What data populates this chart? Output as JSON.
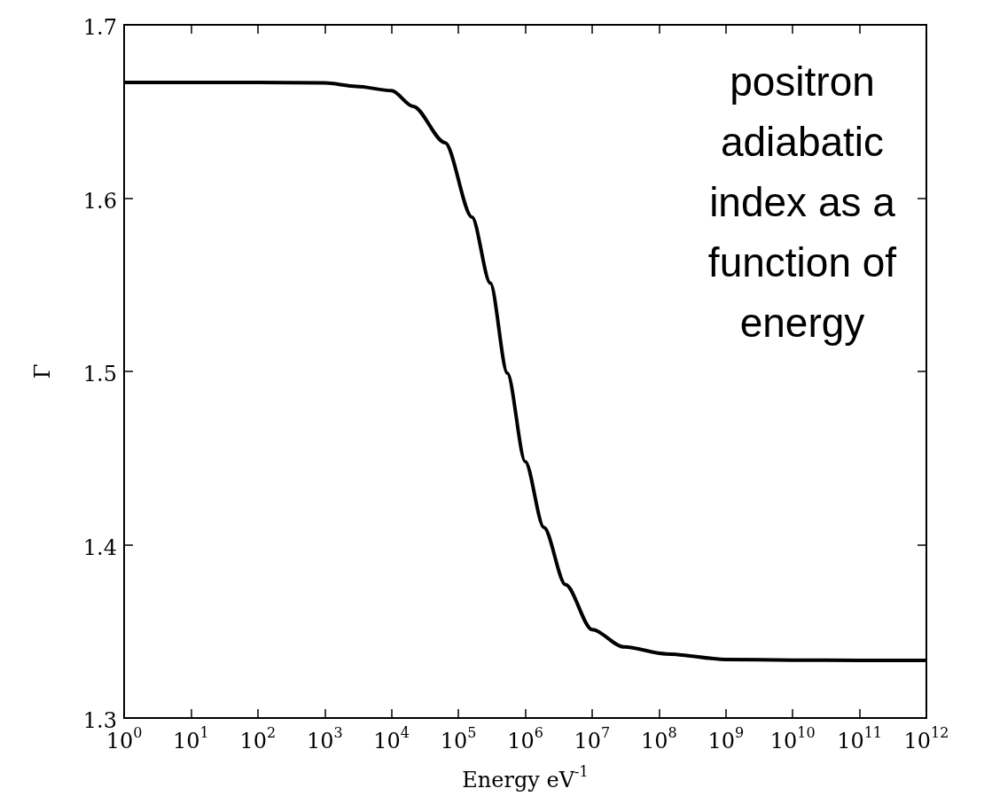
{
  "chart_data": {
    "type": "line",
    "xlabel": "Energy eV$^{-1}$",
    "ylabel": "Γ",
    "log": "x",
    "xlim": [
      1,
      1000000000000
    ],
    "xticks": [
      {
        "value": 1,
        "label": "10$^{0}$"
      },
      {
        "value": 10,
        "label": "10$^{1}$"
      },
      {
        "value": 100,
        "label": "10$^{2}$"
      },
      {
        "value": 1000,
        "label": "10$^{3}$"
      },
      {
        "value": 10000,
        "label": "10$^{4}$"
      },
      {
        "value": 100000,
        "label": "10$^{5}$"
      },
      {
        "value": 1000000,
        "label": "10$^{6}$"
      },
      {
        "value": 10000000,
        "label": "10$^{7}$"
      },
      {
        "value": 100000000,
        "label": "10$^{8}$"
      },
      {
        "value": 1000000000,
        "label": "10$^{9}$"
      },
      {
        "value": 10000000000,
        "label": "10$^{10}$"
      },
      {
        "value": 100000000000,
        "label": "10$^{11}$"
      },
      {
        "value": 1000000000000,
        "label": "10$^{12}$"
      }
    ],
    "ylim": [
      1.3,
      1.7
    ],
    "yticks": [
      1.3,
      1.4,
      1.5,
      1.6,
      1.7
    ],
    "grid": false,
    "marker": "none",
    "line_style": "solid",
    "annotations": [
      "positron adiabatic index as a function of energy"
    ],
    "x": [
      1,
      10,
      100,
      1000,
      3000,
      10000,
      21000,
      63000,
      160000,
      300000,
      540000,
      1000000,
      1900000,
      4000000,
      10000000,
      30000000,
      130000000,
      1000000000,
      10000000000,
      100000000000,
      1000000000000
    ],
    "series": [
      {
        "color": "#000000",
        "values": [
          1.6667,
          1.6667,
          1.6667,
          1.6665,
          1.6645,
          1.662,
          1.653,
          1.632,
          1.589,
          1.551,
          1.499,
          1.448,
          1.41,
          1.377,
          1.351,
          1.341,
          1.337,
          1.3338,
          1.3334,
          1.3333,
          1.3333
        ]
      }
    ]
  }
}
